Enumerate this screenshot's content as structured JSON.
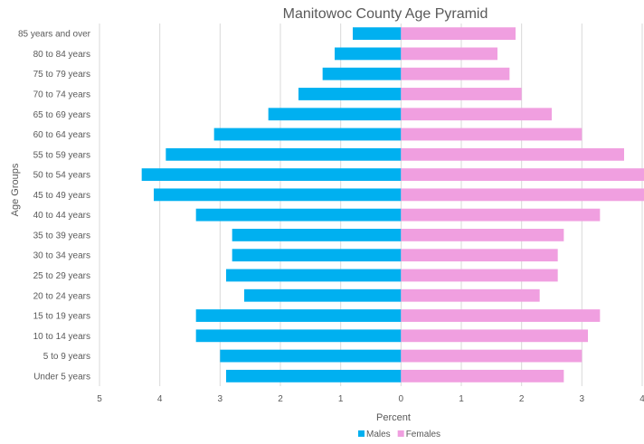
{
  "chart_data": {
    "type": "bar",
    "orientation": "horizontal-pyramid",
    "title": "Manitowoc County Age Pyramid",
    "xlabel": "Percent",
    "ylabel": "Age Groups",
    "categories": [
      "85 years and over",
      "80 to 84 years",
      "75 to 79 years",
      "70 to 74 years",
      "65 to 69 years",
      "60 to 64 years",
      "55 to 59 years",
      "50 to 54 years",
      "45 to 49 years",
      "40 to 44 years",
      "35 to 39 years",
      "30 to 34 years",
      "25 to 29 years",
      "20 to 24 years",
      "15 to 19 years",
      "10 to 14 years",
      "5 to 9 years",
      "Under 5 years"
    ],
    "series": [
      {
        "name": "Males",
        "color": "#00b0f0",
        "values": [
          0.8,
          1.1,
          1.3,
          1.7,
          2.2,
          3.1,
          3.9,
          4.3,
          4.1,
          3.4,
          2.8,
          2.8,
          2.9,
          2.6,
          3.4,
          3.4,
          3.0,
          2.9
        ]
      },
      {
        "name": "Females",
        "color": "#f09fe0",
        "values": [
          1.9,
          1.6,
          1.8,
          2.0,
          2.5,
          3.0,
          3.7,
          4.1,
          4.2,
          3.3,
          2.7,
          2.6,
          2.6,
          2.3,
          3.3,
          3.1,
          3.0,
          2.7
        ]
      }
    ],
    "xlim": [
      -5,
      4
    ],
    "xticks": [
      -5,
      -4,
      -3,
      -2,
      -1,
      0,
      1,
      2,
      3,
      4
    ],
    "xtick_labels": [
      "5",
      "4",
      "3",
      "2",
      "1",
      "0",
      "1",
      "2",
      "3",
      "4"
    ],
    "grid": true,
    "legend_position": "bottom"
  }
}
